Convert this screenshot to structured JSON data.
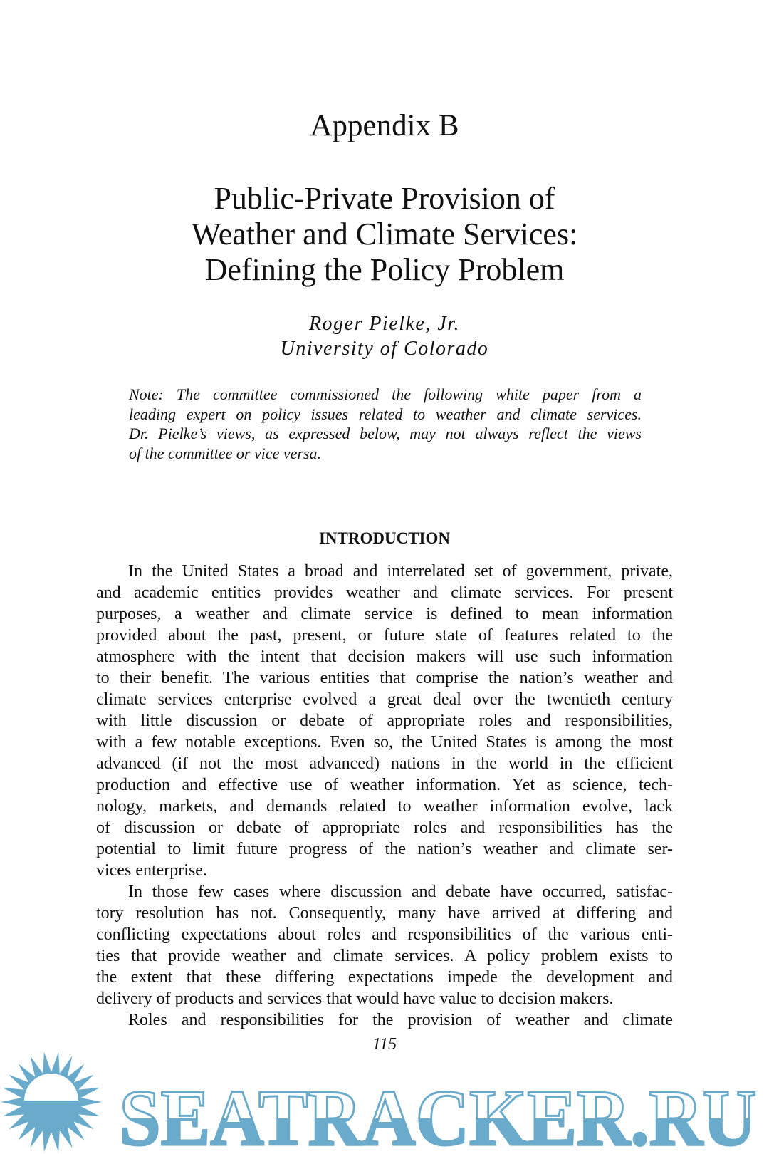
{
  "heading": "Appendix B",
  "title_lines": [
    "Public-Private Provision of",
    "Weather and Climate Services:",
    "Defining the Policy Problem"
  ],
  "author": {
    "name": "Roger Pielke, Jr.",
    "affiliation": "University of Colorado"
  },
  "note_lines": [
    "Note: The committee commissioned the following white paper from a",
    "leading expert on policy issues related to weather and climate services.",
    "Dr. Pielke’s views, as expressed below, may not always reflect the views",
    "of the committee or vice versa."
  ],
  "section_heading": "INTRODUCTION",
  "paragraphs": [
    [
      "In the United States a broad and interrelated set of government, private,",
      "and academic entities provides weather and climate services. For present",
      "purposes, a weather and climate service is defined to mean information",
      "provided about the past, present, or future state of features related to the",
      "atmosphere with the intent that decision makers will use such information",
      "to their benefit. The various entities that comprise the nation’s weather and",
      "climate services enterprise evolved a great deal over the twentieth century",
      "with little discussion or debate of appropriate roles and responsibilities,",
      "with a few notable exceptions. Even so, the United States is among the most",
      "advanced (if not the most advanced) nations in the world in the efficient",
      "production and effective use of weather information. Yet as science, tech-",
      "nology, markets, and demands related to weather information evolve, lack",
      "of discussion or debate of appropriate roles and responsibilities has the",
      "potential to limit future progress of the nation’s weather and climate ser-",
      "vices enterprise."
    ],
    [
      "In those few cases where discussion and debate have occurred, satisfac-",
      "tory resolution has not. Consequently, many have arrived at differing and",
      "conflicting expectations about roles and responsibilities of the various enti-",
      "ties that provide weather and climate services. A policy problem exists to",
      "the extent that these differing expectations impede the development and",
      "delivery of products and services that would have value to decision makers."
    ],
    [
      "Roles and responsibilities for the provision of weather and climate"
    ]
  ],
  "page_number": "115",
  "watermark": {
    "text": "SEATRACKER.RU",
    "color": "#6aaacb",
    "icon": "sun-icon"
  }
}
